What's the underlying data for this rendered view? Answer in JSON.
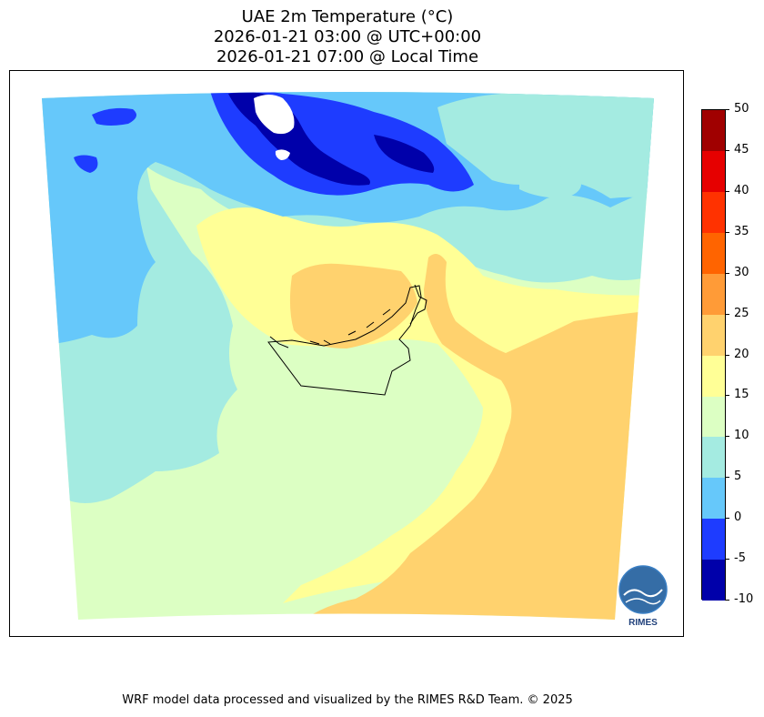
{
  "title": {
    "line1": "UAE 2m Temperature (°C)",
    "line2": "2026-01-21 03:00 @ UTC+00:00",
    "line3": "2026-01-21 07:00 @ Local Time"
  },
  "colorbar": {
    "min": -10,
    "max": 50,
    "step": 5,
    "ticks": [
      "50",
      "45",
      "40",
      "35",
      "30",
      "25",
      "20",
      "15",
      "10",
      "5",
      "0",
      "-5",
      "-10"
    ],
    "colors": [
      "#0000aa",
      "#1e3cff",
      "#66c8fa",
      "#a4ebe1",
      "#dcffc3",
      "#ffff96",
      "#ffd26e",
      "#ff9b37",
      "#ff6400",
      "#ff3200",
      "#e60000",
      "#a00000"
    ]
  },
  "legend_colors": {
    "very_cold": "#0000aa",
    "cold": "#1e3cff",
    "cool": "#66c8fa",
    "mild_cool": "#a4ebe1",
    "mild": "#dcffc3",
    "warm_mild": "#ffff96",
    "warm": "#ffd26e",
    "snow_white": "#ffffff"
  },
  "logo": {
    "text": "RIMES",
    "icon": "rimes-globe-logo-icon"
  },
  "footer": "WRF model data processed and visualized by the RIMES R&D Team. © 2025"
}
